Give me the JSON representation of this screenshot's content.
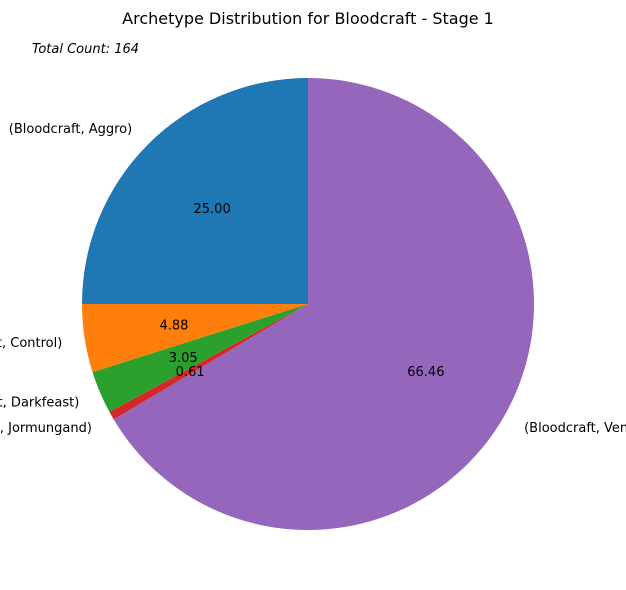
{
  "chart_data": {
    "type": "pie",
    "title": "Archetype Distribution for Bloodcraft - Stage 1",
    "annotation": "Total Count: 164",
    "start_angle_deg": 90,
    "direction": "counterclockwise",
    "slices": [
      {
        "label": "(Bloodcraft, Aggro)",
        "value": 25.0,
        "pct_label": "25.00",
        "color": "#1f77b4"
      },
      {
        "label": "(Bloodcraft, Control)",
        "value": 4.88,
        "pct_label": "4.88",
        "color": "#ff7f0e"
      },
      {
        "label": "(Bloodcraft, Darkfeast)",
        "value": 3.05,
        "pct_label": "3.05",
        "color": "#2ca02c"
      },
      {
        "label": "(Bloodcraft, Jormungand)",
        "value": 0.61,
        "pct_label": "0.61",
        "color": "#d62728"
      },
      {
        "label": "(Bloodcraft, Vengeance)",
        "value": 66.46,
        "pct_label": "66.46",
        "color": "#9467bd"
      }
    ]
  }
}
